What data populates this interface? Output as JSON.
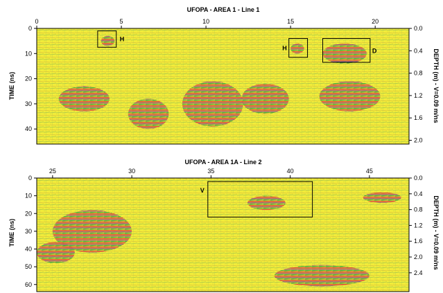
{
  "chart_data": [
    {
      "type": "heatmap",
      "title": "UFOPA - AREA 1 - Line 1",
      "xlabel": "",
      "ylabel": "TIME (ns)",
      "y2label": "DEPTH (m) - V=0.09 m/ns",
      "xlim": [
        0,
        22
      ],
      "ylim": [
        0,
        46
      ],
      "x_ticks": [
        "0",
        "5",
        "10",
        "15",
        "20"
      ],
      "y_ticks": [
        "0",
        "10",
        "20",
        "30",
        "40"
      ],
      "y2_ticks": [
        "0.0",
        "0.4",
        "0.8",
        "1.2",
        "1.6",
        "2.0"
      ],
      "grid": false,
      "annotations": [
        {
          "label": "H",
          "box": {
            "x0": 3.6,
            "x1": 4.7,
            "y0": 1,
            "y1": 7.5
          }
        },
        {
          "label": "H",
          "box": {
            "x0": 14.9,
            "x1": 16.0,
            "y0": 4,
            "y1": 11.5
          }
        },
        {
          "label": "D",
          "box": {
            "x0": 16.9,
            "x1": 19.7,
            "y0": 4,
            "y1": 13.5
          }
        }
      ],
      "hotspots": [
        {
          "x": 10.4,
          "y": 30,
          "rx": 1.8,
          "ry": 9
        },
        {
          "x": 6.6,
          "y": 34,
          "rx": 1.2,
          "ry": 6
        },
        {
          "x": 2.8,
          "y": 28,
          "rx": 1.5,
          "ry": 5
        },
        {
          "x": 13.5,
          "y": 28,
          "rx": 1.4,
          "ry": 6
        },
        {
          "x": 18.2,
          "y": 10,
          "rx": 1.3,
          "ry": 4
        },
        {
          "x": 4.2,
          "y": 5,
          "rx": 0.4,
          "ry": 2
        },
        {
          "x": 15.4,
          "y": 8,
          "rx": 0.4,
          "ry": 2
        },
        {
          "x": 18.5,
          "y": 27,
          "rx": 1.8,
          "ry": 6
        }
      ]
    },
    {
      "type": "heatmap",
      "title": "UFOPA - AREA 1A - Line 2",
      "xlabel": "",
      "ylabel": "TIME (ns)",
      "y2label": "DEPTH (m) - V=0.09 m/ns",
      "xlim": [
        24,
        47.5
      ],
      "ylim": [
        0,
        64
      ],
      "x_ticks": [
        "25",
        "30",
        "35",
        "40",
        "45"
      ],
      "y_ticks": [
        "0",
        "10",
        "20",
        "30",
        "40",
        "50",
        "60"
      ],
      "y2_ticks": [
        "0.0",
        "0.4",
        "0.8",
        "1.2",
        "1.6",
        "2.0",
        "2.4"
      ],
      "grid": false,
      "annotations": [
        {
          "label": "V",
          "box": {
            "x0": 34.8,
            "x1": 41.4,
            "y0": 2,
            "y1": 22
          }
        }
      ],
      "hotspots": [
        {
          "x": 27.5,
          "y": 30,
          "rx": 2.5,
          "ry": 12
        },
        {
          "x": 38.5,
          "y": 14,
          "rx": 1.2,
          "ry": 4
        },
        {
          "x": 45.8,
          "y": 11,
          "rx": 1.2,
          "ry": 3
        },
        {
          "x": 42.0,
          "y": 55,
          "rx": 3.0,
          "ry": 6
        },
        {
          "x": 25.2,
          "y": 42,
          "rx": 1.2,
          "ry": 6
        }
      ]
    }
  ]
}
